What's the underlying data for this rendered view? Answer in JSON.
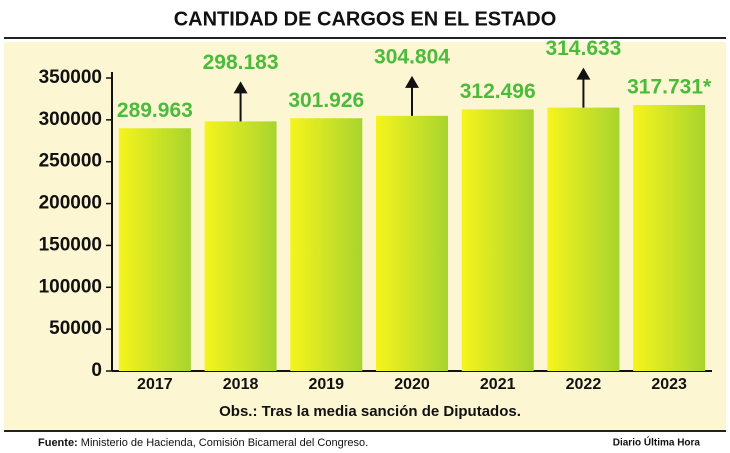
{
  "chart_data": {
    "type": "bar",
    "title": "CANTIDAD DE CARGOS EN EL ESTADO",
    "categories": [
      "2017",
      "2018",
      "2019",
      "2020",
      "2021",
      "2022",
      "2023"
    ],
    "values": [
      289963,
      298183,
      301926,
      304804,
      312496,
      314633,
      317731
    ],
    "value_labels": [
      "289.963",
      "298.183",
      "301.926",
      "304.804",
      "312.496",
      "314.633",
      "317.731*"
    ],
    "color": "#a8d42e",
    "ylim": [
      0,
      350000
    ],
    "yticks": [
      0,
      50000,
      100000,
      150000,
      200000,
      250000,
      300000,
      350000
    ],
    "note": "Obs.: Tras la media sanción de Diputados.",
    "source_label": "Fuente:",
    "source": "Ministerio de Hacienda, Comisión Bicameral del Congreso.",
    "publisher": "Diario Última Hora"
  }
}
